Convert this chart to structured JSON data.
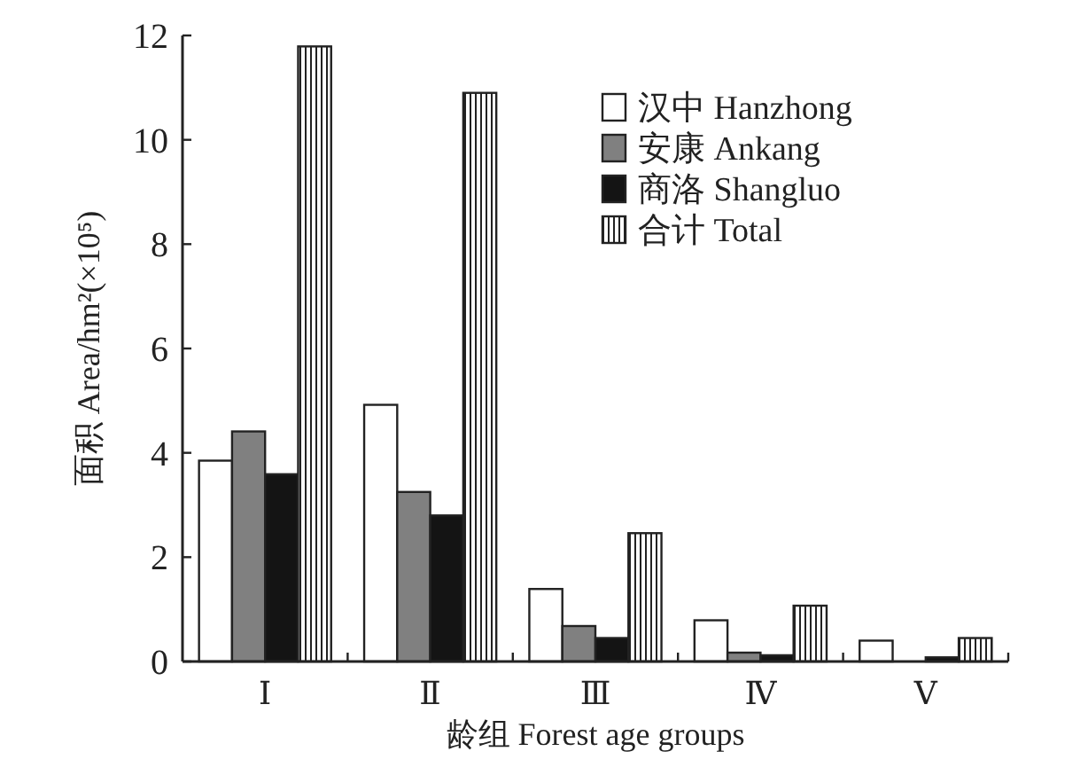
{
  "chart_data": {
    "type": "bar",
    "xlabel": "龄组 Forest age groups",
    "ylabel": "面积 Area/hm²(×10⁵)",
    "categories": [
      "Ⅰ",
      "Ⅱ",
      "Ⅲ",
      "Ⅳ",
      "Ⅴ"
    ],
    "series": [
      {
        "name": "汉中 Hanzhong",
        "color": "#ffffff",
        "values": [
          3.85,
          4.92,
          1.39,
          0.79,
          0.4
        ]
      },
      {
        "name": "安康 Ankang",
        "color": "#808080",
        "values": [
          4.41,
          3.25,
          0.68,
          0.17,
          0
        ]
      },
      {
        "name": "商洛 Shangluo",
        "color": "#141414",
        "values": [
          3.59,
          2.8,
          0.45,
          0.12,
          0.08
        ]
      },
      {
        "name": "合计 Total",
        "color": "#222222",
        "values": [
          11.79,
          10.9,
          2.46,
          1.07,
          0.45
        ]
      }
    ],
    "ylim": [
      0,
      12
    ],
    "yticks": [
      0,
      2,
      4,
      6,
      8,
      10,
      12
    ],
    "grid": false,
    "legend": "top right"
  }
}
